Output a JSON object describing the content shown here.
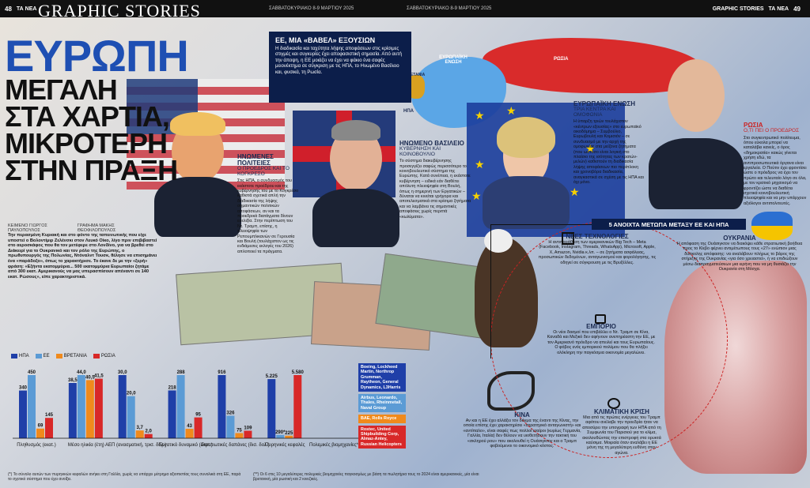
{
  "header": {
    "left_page": "48",
    "left_paper": "ΤΑ ΝΕΑ",
    "brand": "GRAPHIC STORIES",
    "issue_left": "ΣΑΒΒΑΤΟΚΥΡΙΑΚΟ 8-9 ΜΑΡΤΙΟΥ 2025",
    "issue_right": "ΣΑΒΒΑΤΟΚΥΡΙΑΚΟ 8-9 ΜΑΡΤΙΟΥ 2025",
    "right_brand": "GRAPHIC STORIES",
    "right_paper": "ΤΑ ΝΕΑ",
    "right_page": "49"
  },
  "headline": {
    "main": "ΕΥΡΩΠΗ",
    "line1": "ΜΕΓΑΛΗ",
    "line2": "ΣΤΑ ΧΑΡΤΙΑ,",
    "line3": "ΜΙΚΡΟΤΕΡΗ",
    "line4": "ΣΤΗΝ ΠΡΑΞΗ"
  },
  "bylines": {
    "text_label": "ΚΕΙΜΕΝΟ ΓΙΩΡΓΟΣ ΠΑΥΛΟΠΟΥΛΟΣ",
    "graphics_label": "ΓΡΑΦΗΜΑ ΜΑΚΗΣ ΘΕΟΦΙΛΟΠΟΥΛΟΣ"
  },
  "intro": "Την περασμένη Κυριακή και στο φόντο της ταπεινωτικής που είχε υποστεί ο Βολοντίμιρ Ζελένσκι στον Λευκό Οίκο, λίγο πριν επιβιβαστεί στο αεροσκάφος που θα τον μετέφερε στο Λονδίνο, για να βρεθεί στο Διάκειρί για το Ουκρανικό και τον ρόλο της Ευρώπης, ο πρωθυπουργός της Πολωνίας, Ντόναλντ Τουσκ, θέλησε να επισημάνει ένα «παράδοξο», όπως το χαρακτήρισε. Το έκανε δε με την «ξερή» φράση: «Εξήντα εκατομμύρια... 500 εκατομμύρια Ευρωπαίοι ζητάμε από 300 εκατ. Αμερικανούς να μας υπερασπίσουν απέναντι σε 140 εκατ. Ρώσους», είπε χαρακτηριστικά.",
  "question_box": {
    "title": "ΕΕ, ΜΙΑ «ΒΑΒΕΛ» ΕΞΟΥΣΙΩΝ",
    "body": "Η διαδικασία και ταχύτητα λήψης αποφάσεων στις κρίσιμες στιγμές και συγκυρίες έχει αποφασιστική σημασία. Από αυτή την άποψη, η ΕΕ μοιάζει να έχει να φάκιο ένα σαφές μειονέκτημα σε σύγκριση με τις ΗΠΑ, το Ηνωμένο Βασίλειο και, φυσικά, τη Ρωσία."
  },
  "map_labels": {
    "eu": "ΕΥΡΩΠΑΪΚΗ ΕΝΩΣΗ",
    "uk": "ΒΡΕΤΑΝΙΑ",
    "russia": "ΡΩΣΙΑ",
    "usa": "ΗΠΑ"
  },
  "sections": {
    "usa": {
      "title": "ΗΝΩΜΕΝΕΣ ΠΟΛΙΤΕΙΕΣ",
      "sub": "Ο ΠΡΟΕΔΡΟΣ ΚΑΙ ΤΟ ΚΟΓΚΡΕΣΟ",
      "body": "Στις ΗΠΑ, ο συνδυασμός του εκάστοτε προέδρου και της κυβέρνησής του με το Κογκρέσο καθιστά σχετικά απλή την διαδικασία της λήψης σημαντικών πολιτικών αποφάσεων, αν και τα προεδρικά διατάγματα δίνουν ευελιξία. Στην περίπτωση του Ντ. Τραμπ, επίσης, η πλειοψηφία των Ρεπουμπλικανών σε Γερουσία και Βουλή (τουλάχιστον ως τις ενδιάμεσες εκλογές του 2026) απλοποιεί τα πράγματα."
    },
    "uk": {
      "title": "ΗΝΩΜΕΝΟ ΒΑΣΙΛΕΙΟ",
      "sub": "ΚΥΒΕΡΝΗΣΗ ΚΑΙ ΚΟΙΝΟΒΟΥΛΙΟ",
      "body": "Το σύστημα διακυβέρνησης προσεγγίζει σαφώς περισσότερο το κοινοβουλευτικό σύστημα της Ευρώπης. Κατά συνέπεια, η εκάστοτε κυβέρνηση – ειδικά εάν διαθέτει απόλυτη πλειοψηφία στη Βουλή, όπως η σημερινή των Εργατικών – δύναται να κινείται γρήγορα και αποτελεσματικά στα κρίσιμα ζητήματα και να λαμβάνει τις σημαντικές αποφάσεις χωρίς περιττά «κωλύματα»."
    },
    "eu": {
      "title": "ΕΥΡΩΠΑΪΚΗ ΕΝΩΣΗ",
      "sub": "ΤΡΙΑ ΚΕΝΤΡΑ ΚΑΙ ΟΜΟΦΩΝΙΑ",
      "body": "Η ύπαρξη τριών τουλάχιστον «κέντρων εξουσίας» στο ευρωπαϊκό οικοδόμημα – Συμβούλιο, Ευρωβουλή και Κομισιόν – σε συνδυασμό με την αρχή της ομοφωνίας στα μείζονα ζητήματα (που ωστόσο είναι λογική στο πλαίσιο της ισότητας των κρατών-μελών) καθιστούν τη διαδικασία λήψης αποφάσεων πιο περίπλοκη και χρονοβόρα διαδικασία, αναγκαστικά σε σχέση με τις ΗΠΑ και όχι μόνο."
    },
    "russia": {
      "title": "ΡΩΣΙΑ",
      "sub": "Ο,ΤΙ ΠΕΙ Ο ΠΡΟΕΔΡΟΣ",
      "body": "Στο συγκεντρωτικό πολίτευμα, όπου εύκολα μπορεί να καταλάβει κανείς, ο όρος «δημοκρατία» κακώς γίνεται χρήση εδώ, τα αντιπροσωπευτικά όργανα είναι εργαλεία. Ο Πούτιν έχει φροντίσει ώστε ο πρόεδρος να έχει τον πρώτο και τελευταίο λόγο σε όλα, με τον κρατικό μηχανισμό να φροντίζει ώστε να διαθέτει σχετικά κοινοβουλευτική πλειοψηφία και να μην υπάρχουν αξιόλογοι αντιπολιτευτές."
    }
  },
  "fronts": {
    "title": "5 ΑΝΟΙΧΤΑ ΜΕΤΩΠΑ ΜΕΤΑΞΥ ΕΕ ΚΑΙ ΗΠΑ",
    "tech": {
      "title": "ΝΕΕΣ ΤΕΧΝΟΛΟΓΙΕΣ",
      "body": "Η αντιπαράθεση των αμερικανικών Big Tech – Meta (Facebook, Instagram, Threads, WhatsApp), Microsoft, Apple, X, Amazon, Nvidia κ.λπ. – σε ζητήματα ασφάλειας, προσωπικών δεδομένων, ανταγωνισμού και φορολόγησης, τις οδηγεί σε σύγκρουση με τις Βρυξέλλες."
    },
    "ukraine": {
      "title": "ΟΥΚΡΑΝΙΑ",
      "body": "Η απόφαση της Ουάσιγκτον να διακόψει κάθε στρατιωτική βοήθεια προς το Κίεβο φέρνει αντιμέτωπους τους «27» ενώπιον μιας δύσκολης απόφασης: να αναλάβουν πλήρως το βάρος της στήριξης της Ουκρανίας «για όσο χρειαστεί», ή να επιδιώξουν μέσω διαπραγματεύσεων μια ειρήνη που να μη θυσιάζει την Ουκρανία στη Μόσχα."
    },
    "trade": {
      "title": "ΕΜΠΟΡΙΟ",
      "body": "Οι νέοι δασμοί που επιβάλλει ο Ντ. Τραμπ σε Κίνα, Καναδά και Μεξικό δεν αφήνουν ανεπηρέαστη την ΕΕ, με τον Αμερικανό πρόεδρο να απειλεί και τους Ευρωπαίους. Ο φόβος ενός εμπορικού πολέμου που θα πλήξει ολόκληρη την παγκόσμια οικονομία μεγαλώνει."
    },
    "china": {
      "title": "ΚΙΝΑ",
      "body": "Αν και η ΕΕ έχει αλλάξει τον δόγμα της έναντι της Κίνας, την οποία επίσης έχει χαρακτηρίσει «στρατηγικό ανταγωνιστή» και «αντίπαλο», είναι σαφές πως πολλοί εταίροι (κυρίως Γερμανία, Γαλλία, Ιταλία) δεν θέλουν να υιοθετήσουν την τακτική του «σκληρού ρου» που ακολουθεί η Ουάσιγκτον και ο Τραμπ φοβούμενοι το οικονομικό κόστος."
    },
    "climate": {
      "title": "ΚΛΙΜΑΤΙΚΗ ΚΡΙΣΗ",
      "body": "Μια από τις πρώτες ενέργειες του Τραμπ αφότου ανέλαβε την προεδρία ήταν να αποσύρει την υπογραφή των ΗΠΑ από τη Συμφωνία του Παρισιού για το κλίμα, ακολουθώντας την επιστροφή στα ορυκτά καύσιμα. Μοιραία όταν αναλάβει η ΕΕ μόνη της τη μεγαλύτερη ευθύνη στον αγώνα."
    }
  },
  "chart_data": {
    "type": "bar",
    "legend": [
      "ΗΠΑ",
      "ΕΕ",
      "ΒΡΕΤΑΝΙΑ",
      "ΡΩΣΙΑ"
    ],
    "colors": [
      "#1f3fa8",
      "#5b9bd5",
      "#f08a1c",
      "#d82828"
    ],
    "categories": [
      "Πληθυσμός (εκατ.)",
      "Μέσο ηλικία (έτη)",
      "ΑΕΠ (ανασματική, τρισ. δολ.)",
      "Εργατικό δυναμικό (εκατ.)",
      "Στρατιωτικές δαπάνες (δισ. δολ.)",
      "Πυρηνικές κεφαλές",
      "Πολεμικές βιομηχανίες**"
    ],
    "series": [
      {
        "name": "ΗΠΑ",
        "values": [
          340,
          38.5,
          30.0,
          218,
          916,
          5225,
          null
        ],
        "labels": [
          "340",
          "38,5",
          "30,0",
          "218",
          "916",
          "5.225",
          ""
        ]
      },
      {
        "name": "ΕΕ",
        "values": [
          450,
          44.0,
          20.0,
          288,
          326,
          290,
          null
        ],
        "labels": [
          "450",
          "44,0",
          "20,0",
          "288",
          "326",
          "290*",
          ""
        ]
      },
      {
        "name": "ΒΡΕΤΑΝΙΑ",
        "values": [
          69,
          40.5,
          3.7,
          43,
          75,
          225,
          null
        ],
        "labels": [
          "69",
          "40,5",
          "3,7",
          "43",
          "75",
          "225",
          ""
        ]
      },
      {
        "name": "ΡΩΣΙΑ",
        "values": [
          145,
          41.5,
          2.0,
          95,
          109,
          5580,
          null
        ],
        "labels": [
          "145",
          "41,5",
          "2,0",
          "95",
          "109",
          "5.580",
          ""
        ]
      }
    ]
  },
  "arms": {
    "usa": "Boeing, Lockheed Martin, Northrop Grumman, Raytheon, General Dynamics, L3Harris",
    "eu": "Airbus, Leonardo, Thales, Rheinmetall, Naval Group",
    "uk": "BAE, Rolls Royce",
    "russia": "Rostec, United Shipbuilding Corp, Almaz-Antey, Russian Helicopters"
  },
  "footnotes": {
    "left": "(*) Το σύνολο αυτών των πυρηνικών κεφαλών ανήκει στη Γαλλία, χωρίς να υπάρχει μέτρημα αξιοπιστίας τους συνολικά στη ΕΕ, παρά το σχετικό σύστημα που έχει ανοίξει.",
    "right": "(**) Οι 6 στις 10 μεγαλύτερες πολεμικές βιομηχανίες παγκοσμίως με βάση τα πωλητήρια τους το 2024 είναι αμερικανικές, μία είναι βρετανική, μία ρωσική και 2 κινεζικές."
  }
}
